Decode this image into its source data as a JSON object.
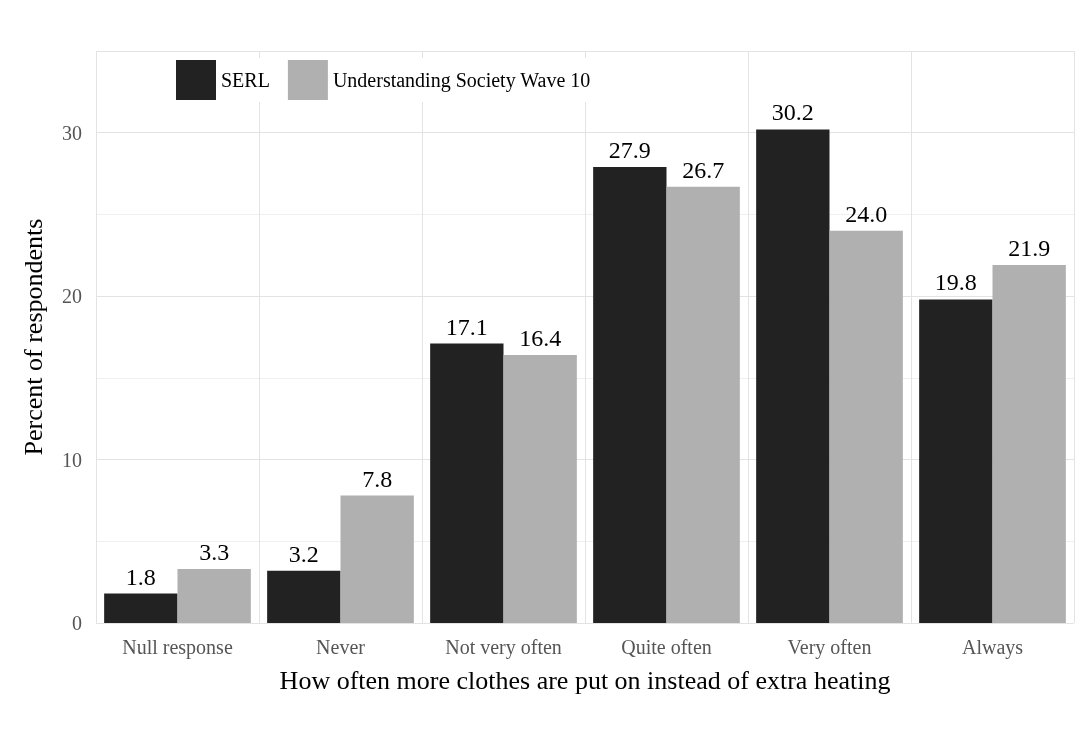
{
  "chart_data": {
    "type": "bar",
    "xlabel": "How often more clothes are put on instead of extra heating",
    "ylabel": "Percent of respondents",
    "categories": [
      "Null response",
      "Never",
      "Not very often",
      "Quite often",
      "Very often",
      "Always"
    ],
    "series": [
      {
        "name": "SERL",
        "color": "#222222",
        "values": [
          1.8,
          3.2,
          17.1,
          27.9,
          30.2,
          19.8
        ],
        "value_labels": [
          "1.8",
          "3.2",
          "17.1",
          "27.9",
          "30.2",
          "19.8"
        ]
      },
      {
        "name": "Understanding Society Wave 10",
        "color": "#b0b0b0",
        "values": [
          3.3,
          7.8,
          16.4,
          26.7,
          24.0,
          21.9
        ],
        "value_labels": [
          "3.3",
          "7.8",
          "16.4",
          "26.7",
          "24.0",
          "21.9"
        ]
      }
    ],
    "ylim": [
      0,
      35
    ],
    "yticks": [
      0,
      10,
      20,
      30
    ],
    "grid": true,
    "legend": "top left"
  }
}
